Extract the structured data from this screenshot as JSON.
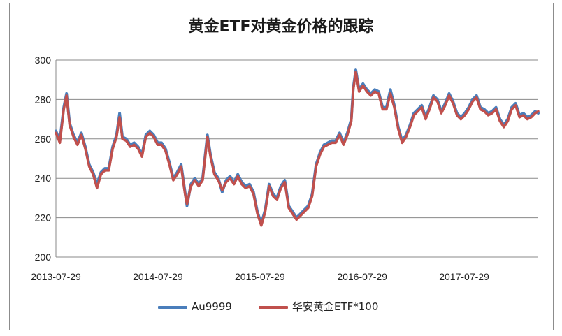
{
  "chart_data": {
    "type": "line",
    "title": "黄金ETF对黄金价格的跟踪",
    "xlabel": "",
    "ylabel": "",
    "ylim": [
      200,
      300
    ],
    "yticks": [
      200,
      220,
      240,
      260,
      280,
      300
    ],
    "xticks": [
      "2013-07-29",
      "2014-07-29",
      "2015-07-29",
      "2016-07-29",
      "2017-07-29"
    ],
    "xlim": [
      "2013-07-29",
      "2018-04-20"
    ],
    "grid": "horizontal",
    "legend_position": "bottom",
    "series": [
      {
        "name": "Au9999",
        "color": "#4a7ebb",
        "points": [
          [
            "2013-07-29",
            264
          ],
          [
            "2013-08-12",
            259
          ],
          [
            "2013-08-26",
            276
          ],
          [
            "2013-09-05",
            283
          ],
          [
            "2013-09-16",
            268
          ],
          [
            "2013-09-30",
            262
          ],
          [
            "2013-10-14",
            258
          ],
          [
            "2013-10-28",
            263
          ],
          [
            "2013-11-11",
            256
          ],
          [
            "2013-11-25",
            247
          ],
          [
            "2013-12-09",
            243
          ],
          [
            "2013-12-23",
            237
          ],
          [
            "2014-01-06",
            243
          ],
          [
            "2014-01-20",
            245
          ],
          [
            "2014-02-03",
            245
          ],
          [
            "2014-02-17",
            256
          ],
          [
            "2014-03-03",
            262
          ],
          [
            "2014-03-14",
            273
          ],
          [
            "2014-03-24",
            261
          ],
          [
            "2014-04-07",
            260
          ],
          [
            "2014-04-21",
            257
          ],
          [
            "2014-05-05",
            258
          ],
          [
            "2014-05-19",
            256
          ],
          [
            "2014-06-02",
            252
          ],
          [
            "2014-06-16",
            262
          ],
          [
            "2014-06-30",
            264
          ],
          [
            "2014-07-14",
            262
          ],
          [
            "2014-07-28",
            258
          ],
          [
            "2014-08-11",
            258
          ],
          [
            "2014-08-25",
            255
          ],
          [
            "2014-09-08",
            248
          ],
          [
            "2014-09-22",
            240
          ],
          [
            "2014-10-06",
            243
          ],
          [
            "2014-10-20",
            247
          ],
          [
            "2014-11-03",
            233
          ],
          [
            "2014-11-10",
            226
          ],
          [
            "2014-11-24",
            237
          ],
          [
            "2014-12-08",
            240
          ],
          [
            "2014-12-22",
            237
          ],
          [
            "2015-01-05",
            240
          ],
          [
            "2015-01-22",
            262
          ],
          [
            "2015-02-02",
            252
          ],
          [
            "2015-02-16",
            243
          ],
          [
            "2015-03-02",
            240
          ],
          [
            "2015-03-16",
            233
          ],
          [
            "2015-03-30",
            239
          ],
          [
            "2015-04-13",
            241
          ],
          [
            "2015-04-27",
            238
          ],
          [
            "2015-05-11",
            242
          ],
          [
            "2015-05-25",
            238
          ],
          [
            "2015-06-08",
            236
          ],
          [
            "2015-06-22",
            237
          ],
          [
            "2015-07-06",
            233
          ],
          [
            "2015-07-20",
            223
          ],
          [
            "2015-08-03",
            217
          ],
          [
            "2015-08-17",
            224
          ],
          [
            "2015-08-31",
            237
          ],
          [
            "2015-09-14",
            232
          ],
          [
            "2015-09-28",
            230
          ],
          [
            "2015-10-12",
            236
          ],
          [
            "2015-10-26",
            239
          ],
          [
            "2015-11-09",
            226
          ],
          [
            "2015-11-23",
            223
          ],
          [
            "2015-12-07",
            220
          ],
          [
            "2015-12-21",
            222
          ],
          [
            "2016-01-04",
            224
          ],
          [
            "2016-01-18",
            226
          ],
          [
            "2016-02-01",
            232
          ],
          [
            "2016-02-15",
            247
          ],
          [
            "2016-02-29",
            253
          ],
          [
            "2016-03-14",
            257
          ],
          [
            "2016-03-28",
            258
          ],
          [
            "2016-04-11",
            259
          ],
          [
            "2016-04-25",
            259
          ],
          [
            "2016-05-09",
            263
          ],
          [
            "2016-05-23",
            258
          ],
          [
            "2016-06-06",
            263
          ],
          [
            "2016-06-20",
            270
          ],
          [
            "2016-06-27",
            286
          ],
          [
            "2016-07-06",
            295
          ],
          [
            "2016-07-18",
            285
          ],
          [
            "2016-08-01",
            288
          ],
          [
            "2016-08-15",
            285
          ],
          [
            "2016-08-29",
            283
          ],
          [
            "2016-09-12",
            285
          ],
          [
            "2016-09-26",
            284
          ],
          [
            "2016-10-10",
            276
          ],
          [
            "2016-10-24",
            276
          ],
          [
            "2016-11-07",
            285
          ],
          [
            "2016-11-21",
            277
          ],
          [
            "2016-12-05",
            266
          ],
          [
            "2016-12-19",
            259
          ],
          [
            "2017-01-02",
            262
          ],
          [
            "2017-01-16",
            267
          ],
          [
            "2017-01-30",
            273
          ],
          [
            "2017-02-13",
            275
          ],
          [
            "2017-02-27",
            277
          ],
          [
            "2017-03-13",
            271
          ],
          [
            "2017-03-27",
            276
          ],
          [
            "2017-04-10",
            282
          ],
          [
            "2017-04-24",
            280
          ],
          [
            "2017-05-08",
            274
          ],
          [
            "2017-05-22",
            278
          ],
          [
            "2017-06-05",
            283
          ],
          [
            "2017-06-19",
            279
          ],
          [
            "2017-07-03",
            273
          ],
          [
            "2017-07-17",
            271
          ],
          [
            "2017-07-31",
            273
          ],
          [
            "2017-08-14",
            276
          ],
          [
            "2017-08-28",
            280
          ],
          [
            "2017-09-11",
            282
          ],
          [
            "2017-09-25",
            276
          ],
          [
            "2017-10-09",
            275
          ],
          [
            "2017-10-23",
            273
          ],
          [
            "2017-11-06",
            274
          ],
          [
            "2017-11-20",
            276
          ],
          [
            "2017-12-04",
            270
          ],
          [
            "2017-12-18",
            267
          ],
          [
            "2018-01-01",
            270
          ],
          [
            "2018-01-15",
            276
          ],
          [
            "2018-01-29",
            278
          ],
          [
            "2018-02-12",
            272
          ],
          [
            "2018-02-26",
            273
          ],
          [
            "2018-03-12",
            271
          ],
          [
            "2018-03-26",
            272
          ],
          [
            "2018-04-09",
            274
          ],
          [
            "2018-04-20",
            273
          ]
        ]
      },
      {
        "name": "华安黄金ETF*100",
        "color": "#c0504d",
        "points": [
          [
            "2013-07-29",
            263
          ],
          [
            "2013-08-12",
            258
          ],
          [
            "2013-08-26",
            275
          ],
          [
            "2013-09-05",
            282
          ],
          [
            "2013-09-16",
            267
          ],
          [
            "2013-09-30",
            261
          ],
          [
            "2013-10-14",
            257
          ],
          [
            "2013-10-28",
            262
          ],
          [
            "2013-11-11",
            255
          ],
          [
            "2013-11-25",
            246
          ],
          [
            "2013-12-09",
            242
          ],
          [
            "2013-12-23",
            235
          ],
          [
            "2014-01-06",
            242
          ],
          [
            "2014-01-20",
            244
          ],
          [
            "2014-02-03",
            244
          ],
          [
            "2014-02-17",
            255
          ],
          [
            "2014-03-03",
            261
          ],
          [
            "2014-03-14",
            271
          ],
          [
            "2014-03-24",
            260
          ],
          [
            "2014-04-07",
            259
          ],
          [
            "2014-04-21",
            256
          ],
          [
            "2014-05-05",
            257
          ],
          [
            "2014-05-19",
            255
          ],
          [
            "2014-06-02",
            251
          ],
          [
            "2014-06-16",
            261
          ],
          [
            "2014-06-30",
            263
          ],
          [
            "2014-07-14",
            261
          ],
          [
            "2014-07-28",
            257
          ],
          [
            "2014-08-11",
            257
          ],
          [
            "2014-08-25",
            254
          ],
          [
            "2014-09-08",
            247
          ],
          [
            "2014-09-22",
            239
          ],
          [
            "2014-10-06",
            242
          ],
          [
            "2014-10-20",
            246
          ],
          [
            "2014-11-03",
            232
          ],
          [
            "2014-11-10",
            227
          ],
          [
            "2014-11-24",
            236
          ],
          [
            "2014-12-08",
            239
          ],
          [
            "2014-12-22",
            236
          ],
          [
            "2015-01-05",
            239
          ],
          [
            "2015-01-22",
            261
          ],
          [
            "2015-02-02",
            251
          ],
          [
            "2015-02-16",
            242
          ],
          [
            "2015-03-02",
            239
          ],
          [
            "2015-03-16",
            234
          ],
          [
            "2015-03-30",
            238
          ],
          [
            "2015-04-13",
            240
          ],
          [
            "2015-04-27",
            237
          ],
          [
            "2015-05-11",
            241
          ],
          [
            "2015-05-25",
            237
          ],
          [
            "2015-06-08",
            235
          ],
          [
            "2015-06-22",
            236
          ],
          [
            "2015-07-06",
            232
          ],
          [
            "2015-07-20",
            222
          ],
          [
            "2015-08-03",
            216
          ],
          [
            "2015-08-17",
            223
          ],
          [
            "2015-08-31",
            236
          ],
          [
            "2015-09-14",
            231
          ],
          [
            "2015-09-28",
            229
          ],
          [
            "2015-10-12",
            235
          ],
          [
            "2015-10-26",
            238
          ],
          [
            "2015-11-09",
            225
          ],
          [
            "2015-11-23",
            222
          ],
          [
            "2015-12-07",
            219
          ],
          [
            "2015-12-21",
            221
          ],
          [
            "2016-01-04",
            223
          ],
          [
            "2016-01-18",
            225
          ],
          [
            "2016-02-01",
            231
          ],
          [
            "2016-02-15",
            246
          ],
          [
            "2016-02-29",
            252
          ],
          [
            "2016-03-14",
            256
          ],
          [
            "2016-03-28",
            257
          ],
          [
            "2016-04-11",
            258
          ],
          [
            "2016-04-25",
            258
          ],
          [
            "2016-05-09",
            262
          ],
          [
            "2016-05-23",
            257
          ],
          [
            "2016-06-06",
            262
          ],
          [
            "2016-06-20",
            269
          ],
          [
            "2016-06-27",
            285
          ],
          [
            "2016-07-06",
            294
          ],
          [
            "2016-07-18",
            284
          ],
          [
            "2016-08-01",
            287
          ],
          [
            "2016-08-15",
            284
          ],
          [
            "2016-08-29",
            282
          ],
          [
            "2016-09-12",
            284
          ],
          [
            "2016-09-26",
            283
          ],
          [
            "2016-10-10",
            275
          ],
          [
            "2016-10-24",
            275
          ],
          [
            "2016-11-07",
            283
          ],
          [
            "2016-11-21",
            276
          ],
          [
            "2016-12-05",
            265
          ],
          [
            "2016-12-19",
            258
          ],
          [
            "2017-01-02",
            261
          ],
          [
            "2017-01-16",
            266
          ],
          [
            "2017-01-30",
            272
          ],
          [
            "2017-02-13",
            274
          ],
          [
            "2017-02-27",
            276
          ],
          [
            "2017-03-13",
            270
          ],
          [
            "2017-03-27",
            275
          ],
          [
            "2017-04-10",
            281
          ],
          [
            "2017-04-24",
            279
          ],
          [
            "2017-05-08",
            273
          ],
          [
            "2017-05-22",
            277
          ],
          [
            "2017-06-05",
            282
          ],
          [
            "2017-06-19",
            278
          ],
          [
            "2017-07-03",
            272
          ],
          [
            "2017-07-17",
            270
          ],
          [
            "2017-07-31",
            272
          ],
          [
            "2017-08-14",
            275
          ],
          [
            "2017-08-28",
            279
          ],
          [
            "2017-09-11",
            281
          ],
          [
            "2017-09-25",
            275
          ],
          [
            "2017-10-09",
            274
          ],
          [
            "2017-10-23",
            272
          ],
          [
            "2017-11-06",
            273
          ],
          [
            "2017-11-20",
            275
          ],
          [
            "2017-12-04",
            269
          ],
          [
            "2017-12-18",
            266
          ],
          [
            "2018-01-01",
            269
          ],
          [
            "2018-01-15",
            275
          ],
          [
            "2018-01-29",
            277
          ],
          [
            "2018-02-12",
            271
          ],
          [
            "2018-02-26",
            272
          ],
          [
            "2018-03-12",
            270
          ],
          [
            "2018-03-26",
            271
          ],
          [
            "2018-04-09",
            273
          ],
          [
            "2018-04-20",
            274
          ]
        ]
      }
    ]
  }
}
